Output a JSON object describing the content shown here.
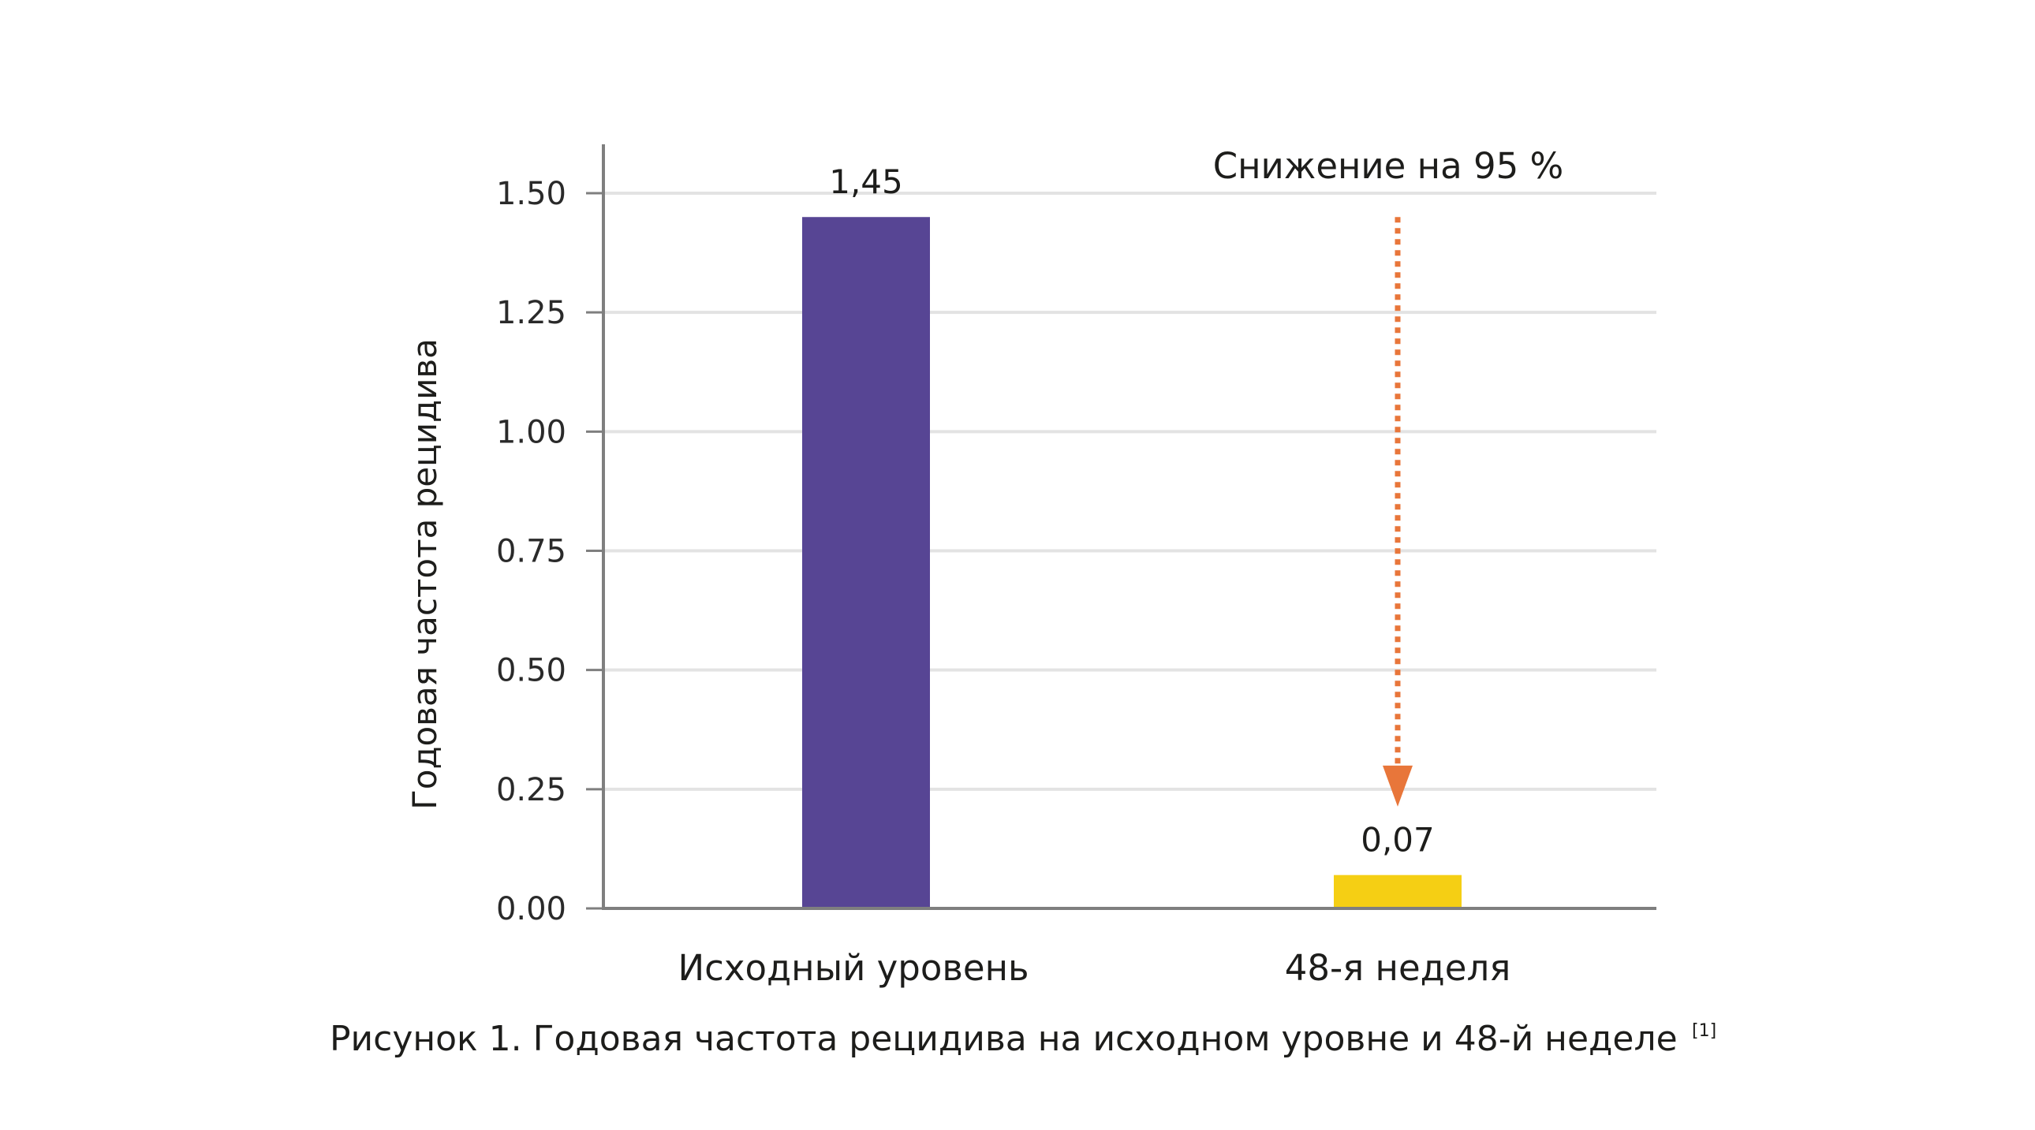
{
  "chart_data": {
    "type": "bar",
    "categories": [
      "Исходный уровень",
      "48-я неделя"
    ],
    "values": [
      1.45,
      0.07
    ],
    "data_labels": [
      "1,45",
      "0,07"
    ],
    "bar_colors": [
      "#574594",
      "#f5cf14"
    ],
    "ylabel": "Годовая частота рецидива",
    "xlabel": "",
    "ylim": [
      0,
      1.5
    ],
    "yticks": [
      0,
      0.25,
      0.5,
      0.75,
      1.0,
      1.25,
      1.5
    ],
    "ytick_labels": [
      "0.00",
      "0.25",
      "0.50",
      "0.75",
      "1.00",
      "1.25",
      "1.50"
    ],
    "grid": true,
    "annotation": {
      "text": "Снижение на 95 %",
      "arrow_color": "#e8763a",
      "arrow_style": "dotted",
      "from_value": 1.45,
      "to_value": 0.25
    }
  },
  "caption": {
    "text": "Рисунок 1. Годовая частота рецидива на исходном уровне и 48-й неделе",
    "reference": "[1]"
  },
  "colors": {
    "grid": "#e3e3e3",
    "axis": "#7f7f7f"
  }
}
